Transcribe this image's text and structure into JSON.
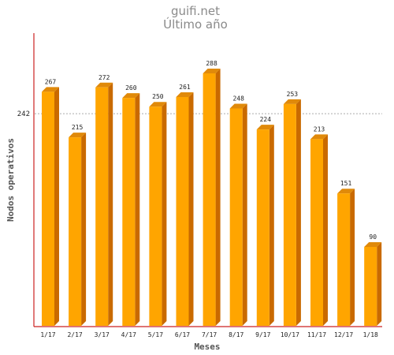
{
  "chart_data": {
    "type": "bar",
    "title": "guifi.net",
    "subtitle": "Último año",
    "xlabel": "Meses",
    "ylabel": "Nodos operativos",
    "categories": [
      "1/17",
      "2/17",
      "3/17",
      "4/17",
      "5/17",
      "6/17",
      "7/17",
      "8/17",
      "9/17",
      "10/17",
      "11/17",
      "12/17",
      "1/18"
    ],
    "values": [
      267,
      215,
      272,
      260,
      250,
      261,
      288,
      248,
      224,
      253,
      213,
      151,
      90
    ],
    "reference_line": {
      "value": 242,
      "label": "242"
    },
    "ylim": [
      0,
      300
    ],
    "grid": false,
    "legend": "none"
  },
  "colors": {
    "bar_front": "#ffa500",
    "bar_side": "#c96a00",
    "bar_top": "#e08a0a",
    "axis": "#cc2222",
    "reference_line": "#aaaaaa",
    "title": "#8a8a8a"
  }
}
